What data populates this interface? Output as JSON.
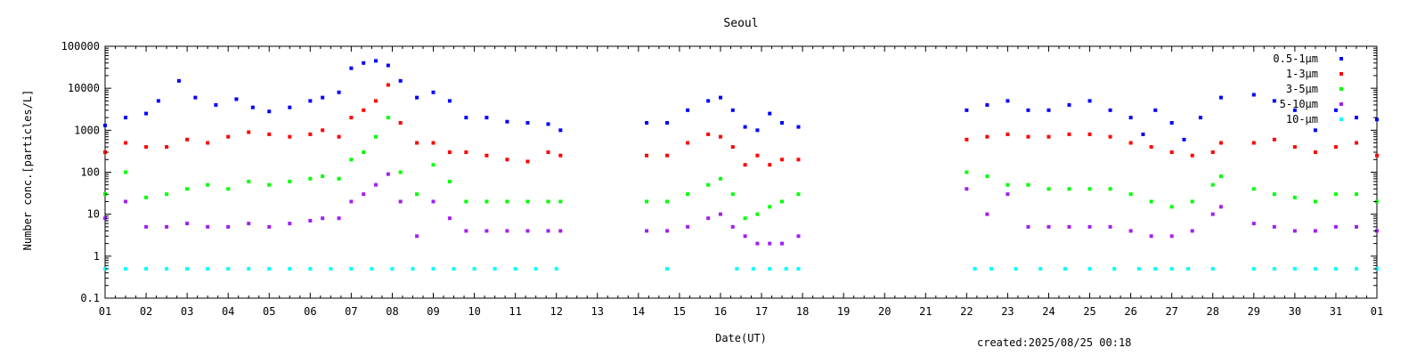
{
  "chart_data": {
    "type": "scatter",
    "title": "Seoul",
    "xlabel": "Date(UT)",
    "ylabel": "Number conc.[particles/L]",
    "y_scale": "log",
    "ylim": [
      0.1,
      100000
    ],
    "xlim": [
      1,
      32
    ],
    "x_ticks": [
      "01",
      "02",
      "03",
      "04",
      "05",
      "06",
      "07",
      "08",
      "09",
      "10",
      "11",
      "12",
      "13",
      "14",
      "15",
      "16",
      "17",
      "18",
      "19",
      "20",
      "21",
      "22",
      "23",
      "24",
      "25",
      "26",
      "27",
      "28",
      "29",
      "30",
      "31",
      "01"
    ],
    "y_ticks": [
      "0.1",
      "1",
      "10",
      "100",
      "1000",
      "10000",
      "100000"
    ],
    "legend_position": "top-right",
    "grid": false,
    "series": [
      {
        "name": "0.5-1μm",
        "color": "#0000ff",
        "x": [
          1.0,
          1.5,
          2.0,
          2.3,
          2.8,
          3.2,
          3.7,
          4.2,
          4.6,
          5.0,
          5.5,
          6.0,
          6.3,
          6.7,
          7.0,
          7.3,
          7.6,
          7.9,
          8.2,
          8.6,
          9.0,
          9.4,
          9.8,
          10.3,
          10.8,
          11.3,
          11.8,
          12.1,
          14.2,
          14.7,
          15.2,
          15.7,
          16.0,
          16.3,
          16.6,
          16.9,
          17.2,
          17.5,
          17.9,
          22.0,
          22.5,
          23.0,
          23.5,
          24.0,
          24.5,
          25.0,
          25.5,
          26.0,
          26.3,
          26.6,
          27.0,
          27.3,
          27.7,
          28.2,
          29.0,
          29.5,
          30.0,
          30.5,
          31.0,
          31.5,
          32.0
        ],
        "y": [
          1300,
          2000,
          2500,
          5000,
          15000,
          6000,
          4000,
          5500,
          3500,
          2800,
          3500,
          5000,
          6000,
          8000,
          30000,
          40000,
          45000,
          35000,
          15000,
          6000,
          8000,
          5000,
          2000,
          2000,
          1600,
          1500,
          1400,
          1000,
          1500,
          1500,
          3000,
          5000,
          6000,
          3000,
          1200,
          1000,
          2500,
          1500,
          1200,
          3000,
          4000,
          5000,
          3000,
          3000,
          4000,
          5000,
          3000,
          2000,
          800,
          3000,
          1500,
          600,
          2000,
          6000,
          7000,
          5000,
          3000,
          1000,
          3000,
          2000,
          1800
        ]
      },
      {
        "name": "1-3μm",
        "color": "#ff0000",
        "x": [
          1.0,
          1.5,
          2.0,
          2.5,
          3.0,
          3.5,
          4.0,
          4.5,
          5.0,
          5.5,
          6.0,
          6.3,
          6.7,
          7.0,
          7.3,
          7.6,
          7.9,
          8.2,
          8.6,
          9.0,
          9.4,
          9.8,
          10.3,
          10.8,
          11.3,
          11.8,
          12.1,
          14.2,
          14.7,
          15.2,
          15.7,
          16.0,
          16.3,
          16.6,
          16.9,
          17.2,
          17.5,
          17.9,
          22.0,
          22.5,
          23.0,
          23.5,
          24.0,
          24.5,
          25.0,
          25.5,
          26.0,
          26.5,
          27.0,
          27.5,
          28.0,
          28.2,
          29.0,
          29.5,
          30.0,
          30.5,
          31.0,
          31.5,
          32.0
        ],
        "y": [
          300,
          500,
          400,
          400,
          600,
          500,
          700,
          900,
          800,
          700,
          800,
          1000,
          700,
          2000,
          3000,
          5000,
          12000,
          1500,
          500,
          500,
          300,
          300,
          250,
          200,
          180,
          300,
          250,
          250,
          250,
          500,
          800,
          700,
          400,
          150,
          250,
          150,
          200,
          200,
          600,
          700,
          800,
          700,
          700,
          800,
          800,
          700,
          500,
          400,
          300,
          250,
          300,
          500,
          500,
          600,
          400,
          300,
          400,
          500,
          250
        ]
      },
      {
        "name": "3-5μm",
        "color": "#00ff00",
        "x": [
          1.0,
          1.5,
          2.0,
          2.5,
          3.0,
          3.5,
          4.0,
          4.5,
          5.0,
          5.5,
          6.0,
          6.3,
          6.7,
          7.0,
          7.3,
          7.6,
          7.9,
          8.2,
          8.6,
          9.0,
          9.4,
          9.8,
          10.3,
          10.8,
          11.3,
          11.8,
          12.1,
          14.2,
          14.7,
          15.2,
          15.7,
          16.0,
          16.3,
          16.6,
          16.9,
          17.2,
          17.5,
          17.9,
          22.0,
          22.5,
          23.0,
          23.5,
          24.0,
          24.5,
          25.0,
          25.5,
          26.0,
          26.5,
          27.0,
          27.5,
          28.0,
          28.2,
          29.0,
          29.5,
          30.0,
          30.5,
          31.0,
          31.5,
          32.0
        ],
        "y": [
          30,
          100,
          25,
          30,
          40,
          50,
          40,
          60,
          50,
          60,
          70,
          80,
          70,
          200,
          300,
          700,
          2000,
          100,
          30,
          150,
          60,
          20,
          20,
          20,
          20,
          20,
          20,
          20,
          20,
          30,
          50,
          70,
          30,
          8,
          10,
          15,
          20,
          30,
          100,
          80,
          50,
          50,
          40,
          40,
          40,
          40,
          30,
          20,
          15,
          20,
          50,
          80,
          40,
          30,
          25,
          20,
          30,
          30,
          20
        ]
      },
      {
        "name": "5-10μm",
        "color": "#a020f0",
        "x": [
          1.0,
          1.5,
          2.0,
          2.5,
          3.0,
          3.5,
          4.0,
          4.5,
          5.0,
          5.5,
          6.0,
          6.3,
          6.7,
          7.0,
          7.3,
          7.6,
          7.9,
          8.2,
          8.6,
          9.0,
          9.4,
          9.8,
          10.3,
          10.8,
          11.3,
          11.8,
          12.1,
          14.2,
          14.7,
          15.2,
          15.7,
          16.0,
          16.3,
          16.6,
          16.9,
          17.2,
          17.5,
          17.9,
          22.0,
          22.5,
          23.0,
          23.5,
          24.0,
          24.5,
          25.0,
          25.5,
          26.0,
          26.5,
          27.0,
          27.5,
          28.0,
          28.2,
          29.0,
          29.5,
          30.0,
          30.5,
          31.0,
          31.5,
          32.0
        ],
        "y": [
          8,
          20,
          5,
          5,
          6,
          5,
          5,
          6,
          5,
          6,
          7,
          8,
          8,
          20,
          30,
          50,
          90,
          20,
          3,
          20,
          8,
          4,
          4,
          4,
          4,
          4,
          4,
          4,
          4,
          5,
          8,
          10,
          5,
          3,
          2,
          2,
          2,
          3,
          40,
          10,
          30,
          5,
          5,
          5,
          5,
          5,
          4,
          3,
          3,
          4,
          10,
          15,
          6,
          5,
          4,
          4,
          5,
          5,
          4
        ]
      },
      {
        "name": "10-μm",
        "color": "#00ffff",
        "x": [
          1.0,
          1.5,
          2.0,
          2.5,
          3.0,
          3.5,
          4.0,
          4.5,
          5.0,
          5.5,
          6.0,
          6.5,
          7.0,
          7.5,
          8.0,
          8.5,
          9.0,
          9.5,
          10.0,
          10.5,
          11.0,
          11.5,
          12.0,
          14.7,
          16.4,
          16.8,
          17.2,
          17.6,
          17.9,
          22.2,
          22.6,
          23.2,
          23.8,
          24.4,
          25.0,
          25.6,
          26.2,
          26.6,
          27.0,
          27.4,
          28.0,
          29.0,
          29.5,
          30.0,
          30.5,
          31.0,
          31.5,
          32.0
        ],
        "y": [
          0.5,
          0.5,
          0.5,
          0.5,
          0.5,
          0.5,
          0.5,
          0.5,
          0.5,
          0.5,
          0.5,
          0.5,
          0.5,
          0.5,
          0.5,
          0.5,
          0.5,
          0.5,
          0.5,
          0.5,
          0.5,
          0.5,
          0.5,
          0.5,
          0.5,
          0.5,
          0.5,
          0.5,
          0.5,
          0.5,
          0.5,
          0.5,
          0.5,
          0.5,
          0.5,
          0.5,
          0.5,
          0.5,
          0.5,
          0.5,
          0.5,
          0.5,
          0.5,
          0.5,
          0.5,
          0.5,
          0.5,
          0.5
        ]
      }
    ]
  },
  "footer": {
    "created": "created:2025/08/25 00:18"
  }
}
